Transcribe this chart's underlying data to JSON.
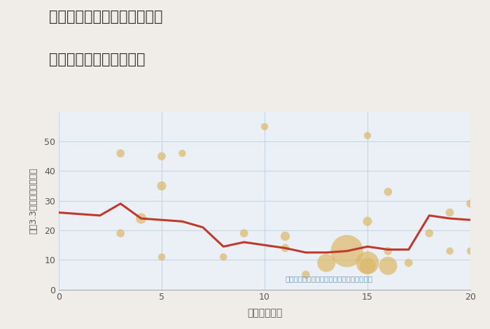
{
  "title_line1": "岐阜県養老郡養老町口ヶ島の",
  "title_line2": "駅距離別中古戸建て価格",
  "xlabel": "駅距離（分）",
  "ylabel": "坪（3.3㎡）単価（万円）",
  "background_color": "#f0ede8",
  "plot_background": "#eaf0f5",
  "grid_color": "#c5d5e5",
  "bubble_color": "#ddb96a",
  "bubble_alpha": 0.72,
  "line_color": "#c0392b",
  "line_width": 2.2,
  "annotation_text": "円の大きさは、取引のあった物件面積を示す",
  "annotation_color": "#6a9cbf",
  "xlim": [
    0,
    20
  ],
  "ylim": [
    0,
    60
  ],
  "yticks": [
    0,
    10,
    20,
    30,
    40,
    50
  ],
  "xticks": [
    0,
    5,
    10,
    15,
    20
  ],
  "scatter_x": [
    3,
    3,
    4,
    5,
    5,
    5,
    6,
    8,
    9,
    10,
    11,
    11,
    12,
    13,
    14,
    15,
    15,
    15,
    15,
    16,
    16,
    16,
    17,
    18,
    19,
    19,
    20,
    20
  ],
  "scatter_y": [
    46,
    19,
    24,
    45,
    35,
    11,
    46,
    11,
    19,
    55,
    18,
    14,
    5,
    9,
    13,
    52,
    23,
    9,
    8,
    33,
    13,
    8,
    9,
    19,
    26,
    13,
    29,
    13
  ],
  "scatter_size": [
    70,
    70,
    120,
    70,
    90,
    55,
    55,
    55,
    70,
    55,
    90,
    70,
    70,
    350,
    1100,
    55,
    90,
    550,
    280,
    70,
    70,
    350,
    70,
    70,
    70,
    55,
    70,
    55
  ],
  "line_x": [
    0,
    1,
    2,
    3,
    4,
    5,
    6,
    7,
    8,
    9,
    10,
    11,
    12,
    13,
    14,
    15,
    16,
    17,
    18,
    19,
    20
  ],
  "line_y": [
    26,
    25.5,
    25,
    29,
    24,
    23.5,
    23,
    21,
    14.5,
    16,
    15,
    14,
    12.5,
    12.5,
    13,
    14.5,
    13.5,
    13.5,
    25,
    24,
    23.5
  ]
}
